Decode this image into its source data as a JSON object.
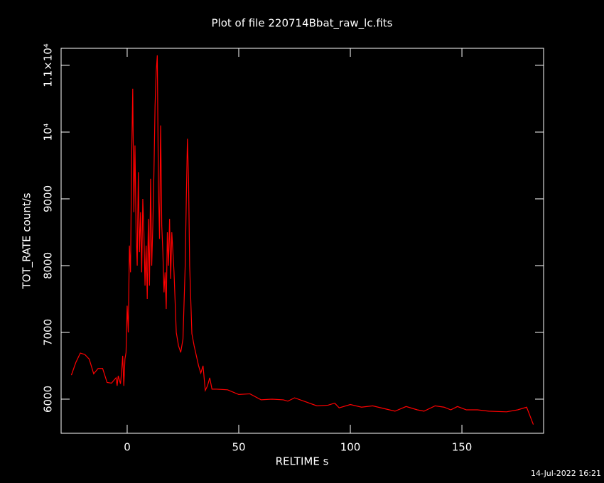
{
  "chart_data": {
    "type": "line",
    "title": "Plot of file 220714Bbat_raw_lc.fits",
    "x_label": "RELTIME  s",
    "y_label": "TOT_RATE  count/s",
    "timestamp": "14-Jul-2022 16:21",
    "xlim": [
      -29.6,
      186.6
    ],
    "ylim": [
      5489,
      11255
    ],
    "xticks": [
      0,
      50,
      100,
      150
    ],
    "yticks": [
      6000,
      7000,
      8000,
      9000,
      {
        "value": 10000,
        "label": "10⁴"
      },
      {
        "value": 11000,
        "label": "1.1×10⁴"
      }
    ],
    "grid": false,
    "x": [
      -25,
      -23,
      -21,
      -19,
      -17,
      -15,
      -13,
      -11,
      -9,
      -7,
      -5,
      -4.5,
      -4,
      -3,
      -2.5,
      -2,
      -1.5,
      -1,
      -0.5,
      0,
      0.5,
      1,
      1.5,
      2,
      2.5,
      3,
      3.5,
      4,
      4.5,
      5,
      5.5,
      6,
      6.5,
      7,
      7.5,
      8,
      8.5,
      9,
      9.5,
      10,
      10.5,
      11,
      11.5,
      12,
      12.5,
      13,
      13.5,
      14,
      14.5,
      15,
      15.5,
      16,
      16.5,
      17,
      17.5,
      18,
      18.5,
      19,
      19.5,
      20,
      21,
      22,
      23,
      24,
      25,
      26,
      26.5,
      27,
      27.5,
      28,
      29,
      30,
      31,
      32,
      33,
      34,
      35,
      36,
      37,
      38,
      40,
      45,
      50,
      55,
      60,
      65,
      70,
      72,
      75,
      80,
      85,
      90,
      93,
      95,
      100,
      105,
      110,
      115,
      120,
      125,
      130,
      133,
      138,
      142,
      145,
      148,
      152,
      157,
      162,
      170,
      175,
      179,
      182
    ],
    "series": [
      {
        "name": "TOT_RATE",
        "color": "#ff0000",
        "values": [
          6360,
          6550,
          6690,
          6670,
          6600,
          6380,
          6460,
          6460,
          6250,
          6240,
          6320,
          6200,
          6350,
          6230,
          6400,
          6650,
          6200,
          6600,
          6700,
          7400,
          7000,
          8300,
          7900,
          9600,
          10650,
          8800,
          9800,
          8500,
          8000,
          9400,
          8200,
          8800,
          7900,
          9000,
          8500,
          7700,
          8300,
          7500,
          8700,
          7700,
          9300,
          8000,
          8600,
          9400,
          10400,
          10900,
          11150,
          9200,
          8400,
          10100,
          8600,
          8200,
          7600,
          7900,
          7350,
          8500,
          8000,
          8700,
          7800,
          8500,
          7900,
          7000,
          6800,
          6700,
          6900,
          8000,
          9000,
          9900,
          9300,
          8000,
          6980,
          6800,
          6650,
          6500,
          6390,
          6500,
          6130,
          6200,
          6320,
          6150,
          6150,
          6140,
          6070,
          6080,
          5990,
          6000,
          5990,
          5970,
          6020,
          5960,
          5900,
          5910,
          5940,
          5870,
          5920,
          5880,
          5900,
          5860,
          5820,
          5890,
          5840,
          5820,
          5900,
          5880,
          5840,
          5890,
          5840,
          5840,
          5820,
          5810,
          5840,
          5880,
          5620
        ]
      }
    ]
  }
}
